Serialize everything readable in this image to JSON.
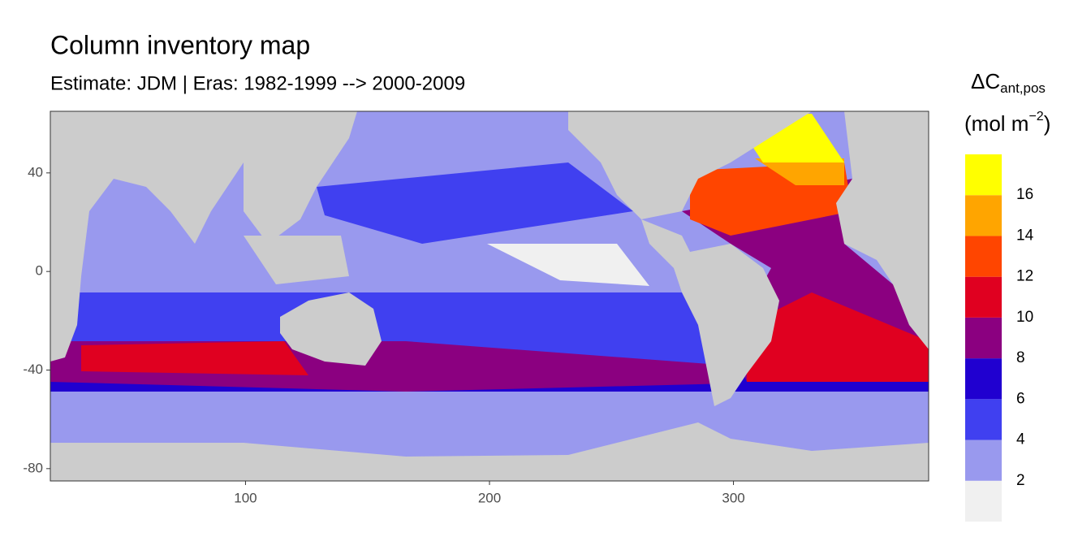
{
  "chart_data": {
    "type": "map",
    "title": "Column inventory map",
    "subtitle": "Estimate: JDM  | Eras: 1982-1999 --> 2000-2009",
    "legend_title": {
      "main": "ΔC",
      "sub": "ant,pos"
    },
    "legend_unit": {
      "main": "(mol m",
      "sup": "−2",
      "end": ")"
    },
    "legend_breaks": [
      2,
      4,
      6,
      8,
      10,
      12,
      14,
      16
    ],
    "legend_colors": [
      "#f0f0f0",
      "#9999ee",
      "#4040f0",
      "#2000d0",
      "#8b0080",
      "#e00020",
      "#ff4500",
      "#ffa500",
      "#ffff00"
    ],
    "xlim": [
      20,
      380
    ],
    "ylim": [
      -85,
      65
    ],
    "xticks": [
      100,
      200,
      300
    ],
    "yticks": [
      -80,
      -40,
      0,
      40
    ]
  }
}
